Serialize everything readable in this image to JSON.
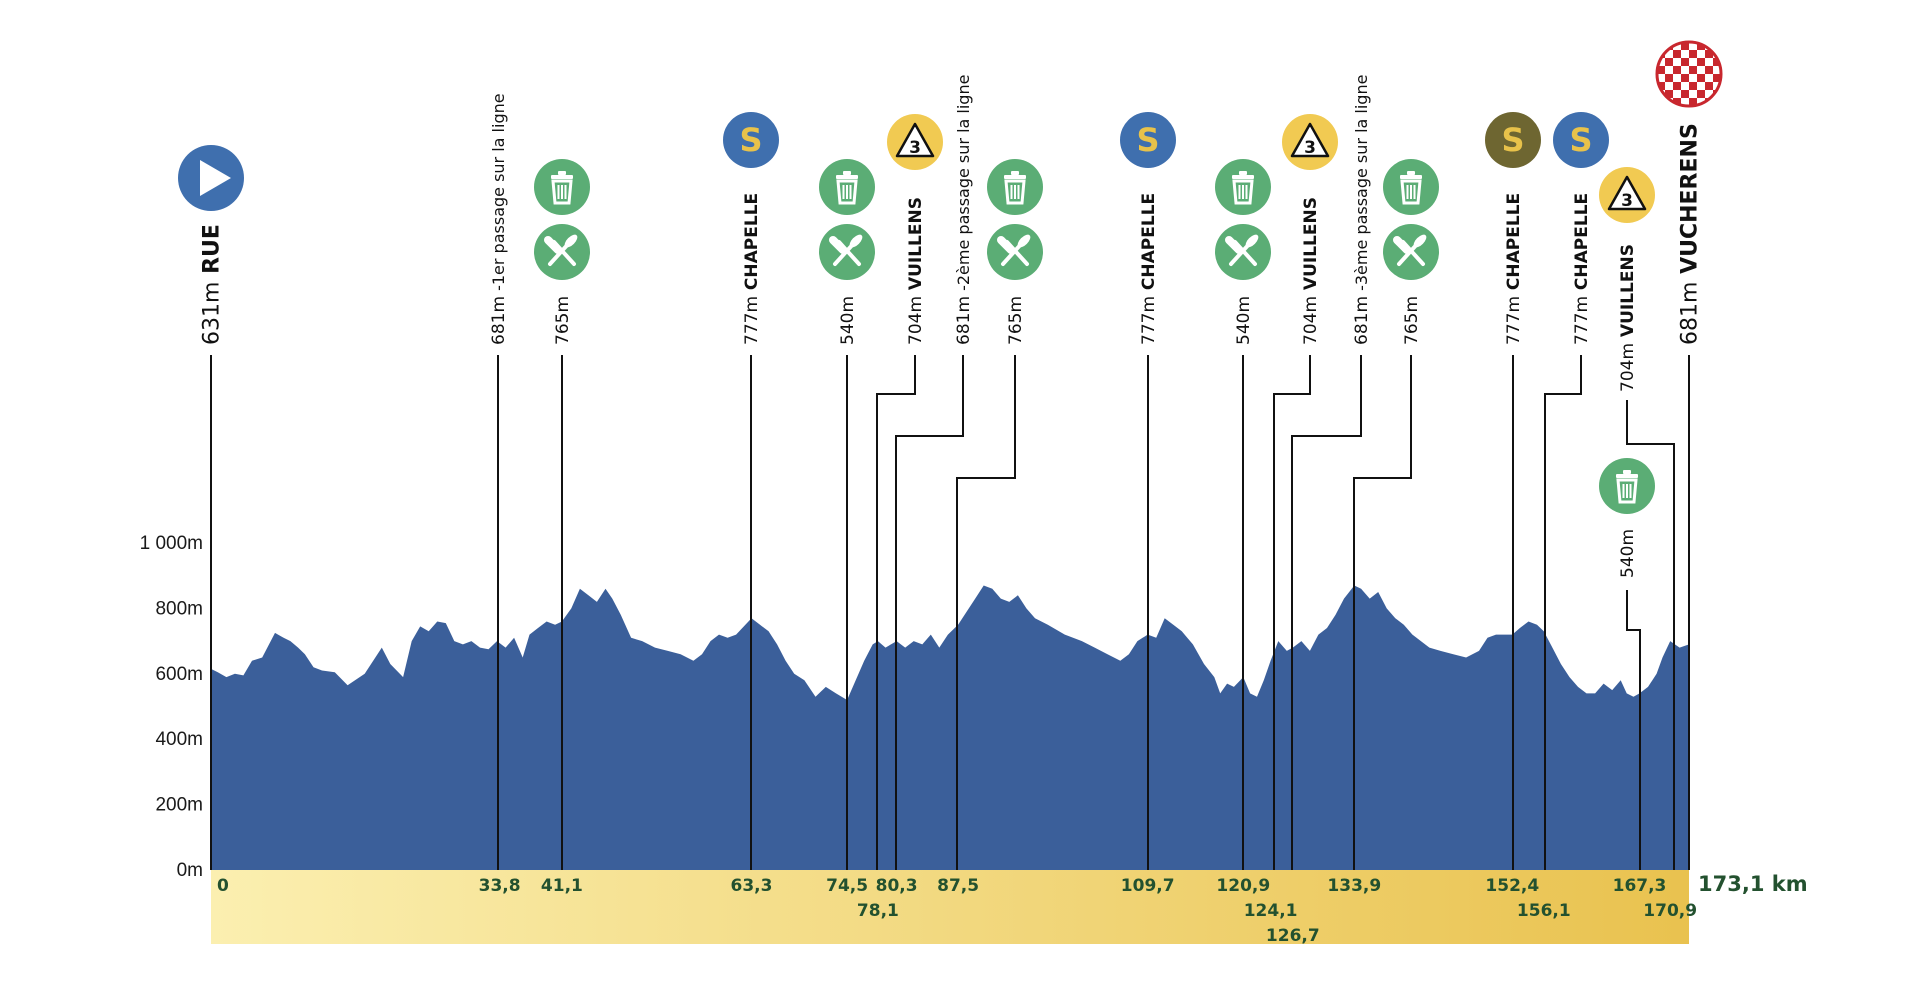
{
  "chart_data": {
    "type": "area",
    "title": "",
    "xlabel": "",
    "ylabel": "",
    "xlim": [
      0,
      173.1
    ],
    "ylim": [
      0,
      1000
    ],
    "yticks": [
      "0m",
      "200m",
      "400m",
      "600m",
      "800m",
      "1 000m"
    ],
    "total_distance_label": "173,1 km",
    "colors": {
      "profile": "#3b5f9a",
      "band_start": "#fbefb0",
      "band_end": "#e9c24f",
      "km_text": "#23512f",
      "sprint_blue": "#3f6fae",
      "sprint_olive": "#6e6631",
      "sprint_letter": "#e8c24a",
      "climb_yellow": "#f1ca52",
      "feed_green": "#5bad75",
      "start_blue": "#3f6fae",
      "finish_red": "#c8272e"
    },
    "profile": {
      "x": [
        0,
        0.8,
        1.8,
        2.8,
        3.8,
        4.8,
        6,
        7.5,
        8.5,
        9.3,
        10.2,
        11,
        12,
        13,
        14.5,
        16,
        18,
        20,
        21,
        22.5,
        23.5,
        24.5,
        25.5,
        26.5,
        27.5,
        28.5,
        29.5,
        30.5,
        31.5,
        32.5,
        33.5,
        34.5,
        35.5,
        36.5,
        37.3,
        38.3,
        39.3,
        40.3,
        41.1,
        42.2,
        43.2,
        44.2,
        45.2,
        46.2,
        47,
        48,
        49.2,
        50.5,
        52,
        53.5,
        55,
        56.5,
        57.5,
        58.5,
        59.5,
        60.5,
        61.5,
        63.3,
        64.3,
        65.3,
        66.3,
        67.3,
        68.3,
        69.5,
        70.8,
        72,
        73.2,
        74.5,
        75.5,
        76.5,
        77.5,
        78.1,
        79,
        80.3,
        81.3,
        82.3,
        83.3,
        84.3,
        85.3,
        86.3,
        87.5,
        88.5,
        89.5,
        90.5,
        91.5,
        92.5,
        93.5,
        94.5,
        95.5,
        96.5,
        98,
        100,
        102,
        103.5,
        105,
        106.5,
        107.5,
        108.5,
        109.7,
        110.7,
        111.7,
        112.7,
        113.7,
        115,
        116.3,
        117.5,
        118.2,
        119,
        119.8,
        120.9,
        121.7,
        122.5,
        123.3,
        124.1,
        125,
        126,
        126.7,
        127.7,
        128.7,
        129.7,
        130.7,
        131.7,
        132.7,
        133.9,
        134.7,
        135.7,
        136.7,
        137.7,
        138.7,
        139.7,
        140.7,
        141.7,
        142.7,
        144,
        145.5,
        147,
        148.5,
        149.5,
        150.5,
        152.4,
        153.3,
        154.3,
        155.3,
        156.1,
        157.1,
        158.1,
        159.1,
        160.1,
        161.1,
        162.1,
        163.1,
        164.1,
        165.1,
        165.8,
        166.6,
        167.3,
        168.3,
        169.3,
        170,
        170.9,
        172,
        173.1
      ],
      "y": [
        615,
        605,
        590,
        600,
        595,
        640,
        650,
        725,
        710,
        700,
        680,
        660,
        620,
        610,
        605,
        565,
        600,
        680,
        630,
        590,
        700,
        745,
        730,
        760,
        755,
        700,
        690,
        700,
        680,
        675,
        700,
        680,
        710,
        650,
        720,
        740,
        760,
        750,
        760,
        800,
        860,
        840,
        820,
        860,
        830,
        780,
        710,
        700,
        680,
        670,
        660,
        640,
        660,
        700,
        720,
        710,
        720,
        770,
        750,
        730,
        690,
        640,
        600,
        580,
        530,
        560,
        540,
        520,
        580,
        640,
        690,
        700,
        680,
        700,
        680,
        700,
        690,
        720,
        680,
        720,
        750,
        790,
        830,
        870,
        860,
        830,
        820,
        840,
        800,
        770,
        750,
        720,
        700,
        680,
        660,
        640,
        660,
        700,
        720,
        710,
        770,
        750,
        730,
        690,
        630,
        590,
        540,
        570,
        560,
        590,
        540,
        530,
        580,
        640,
        700,
        670,
        680,
        700,
        670,
        720,
        740,
        780,
        830,
        870,
        860,
        830,
        850,
        800,
        770,
        750,
        720,
        700,
        680,
        670,
        660,
        650,
        670,
        710,
        720,
        720,
        740,
        760,
        750,
        730,
        680,
        630,
        590,
        560,
        540,
        540,
        570,
        550,
        580,
        540,
        530,
        540,
        560,
        600,
        650,
        700,
        680,
        690
      ]
    },
    "km_markers": [
      {
        "km": 0,
        "label": "0",
        "row": 0
      },
      {
        "km": 33.8,
        "label": "33,8",
        "row": 0
      },
      {
        "km": 41.1,
        "label": "41,1",
        "row": 0
      },
      {
        "km": 63.3,
        "label": "63,3",
        "row": 0
      },
      {
        "km": 74.5,
        "label": "74,5",
        "row": 0
      },
      {
        "km": 78.1,
        "label": "78,1",
        "row": 1
      },
      {
        "km": 80.3,
        "label": "80,3",
        "row": 0
      },
      {
        "km": 87.5,
        "label": "87,5",
        "row": 0
      },
      {
        "km": 109.7,
        "label": "109,7",
        "row": 0
      },
      {
        "km": 120.9,
        "label": "120,9",
        "row": 0
      },
      {
        "km": 124.1,
        "label": "124,1",
        "row": 1
      },
      {
        "km": 126.7,
        "label": "126,7",
        "row": 2
      },
      {
        "km": 133.9,
        "label": "133,9",
        "row": 0
      },
      {
        "km": 152.4,
        "label": "152,4",
        "row": 0
      },
      {
        "km": 156.1,
        "label": "156,1",
        "row": 1
      },
      {
        "km": 167.3,
        "label": "167,3",
        "row": 0
      },
      {
        "km": 170.9,
        "label": "170,9",
        "row": 1
      }
    ],
    "waypoints": [
      {
        "id": "start",
        "km": 0,
        "alt": "631m",
        "name": "RUE",
        "note": "",
        "icon": "start-icon",
        "big": true
      },
      {
        "id": "pass1",
        "km": 33.8,
        "alt": "681m",
        "name": "",
        "note": "-1er passage sur la ligne",
        "icon": ""
      },
      {
        "id": "feed1",
        "km": 41.1,
        "alt": "765m",
        "name": "",
        "note": "",
        "icon": "feed-icons"
      },
      {
        "id": "sprint1",
        "km": 63.3,
        "alt": "777m",
        "name": "CHAPELLE",
        "note": "",
        "icon": "sprint-icon",
        "sprint_color": "blue"
      },
      {
        "id": "feed2",
        "km": 74.5,
        "alt": "540m",
        "name": "",
        "note": "",
        "icon": "feed-icons"
      },
      {
        "id": "climb1",
        "km": 78.1,
        "alt": "704m",
        "name": "VUILLENS",
        "note": "",
        "icon": "climb-icon",
        "cat": "3"
      },
      {
        "id": "pass2",
        "km": 80.3,
        "alt": "681m",
        "name": "",
        "note": "-2ème passage sur la ligne",
        "icon": ""
      },
      {
        "id": "feed3",
        "km": 87.5,
        "alt": "765m",
        "name": "",
        "note": "",
        "icon": "feed-icons"
      },
      {
        "id": "sprint2",
        "km": 109.7,
        "alt": "777m",
        "name": "CHAPELLE",
        "note": "",
        "icon": "sprint-icon",
        "sprint_color": "blue"
      },
      {
        "id": "feed4",
        "km": 120.9,
        "alt": "540m",
        "name": "",
        "note": "",
        "icon": "feed-icons"
      },
      {
        "id": "climb2",
        "km": 124.1,
        "alt": "704m",
        "name": "VUILLENS",
        "note": "",
        "icon": "climb-icon",
        "cat": "3"
      },
      {
        "id": "pass3",
        "km": 126.7,
        "alt": "681m",
        "name": "",
        "note": "-3ème passage sur la ligne",
        "icon": ""
      },
      {
        "id": "feed5",
        "km": 133.9,
        "alt": "765m",
        "name": "",
        "note": "",
        "icon": "feed-icons"
      },
      {
        "id": "sprint3",
        "km": 152.4,
        "alt": "777m",
        "name": "CHAPELLE",
        "note": "",
        "icon": "sprint-icon",
        "sprint_color": "olive"
      },
      {
        "id": "sprint4",
        "km": 156.1,
        "alt": "777m",
        "name": "CHAPELLE",
        "note": "",
        "icon": "sprint-icon",
        "sprint_color": "blue"
      },
      {
        "id": "climb3",
        "km": 170.9,
        "alt": "704m",
        "name": "VUILLENS",
        "note": "",
        "icon": "climb-icon",
        "cat": "3"
      },
      {
        "id": "waste6",
        "km": 167.3,
        "alt": "540m",
        "name": "",
        "note": "",
        "icon": "waste-icon"
      },
      {
        "id": "finish",
        "km": 173.1,
        "alt": "681m",
        "name": "VUCHERENS",
        "note": "",
        "icon": "finish-icon",
        "big": true
      }
    ],
    "sprint_letter": "S"
  }
}
